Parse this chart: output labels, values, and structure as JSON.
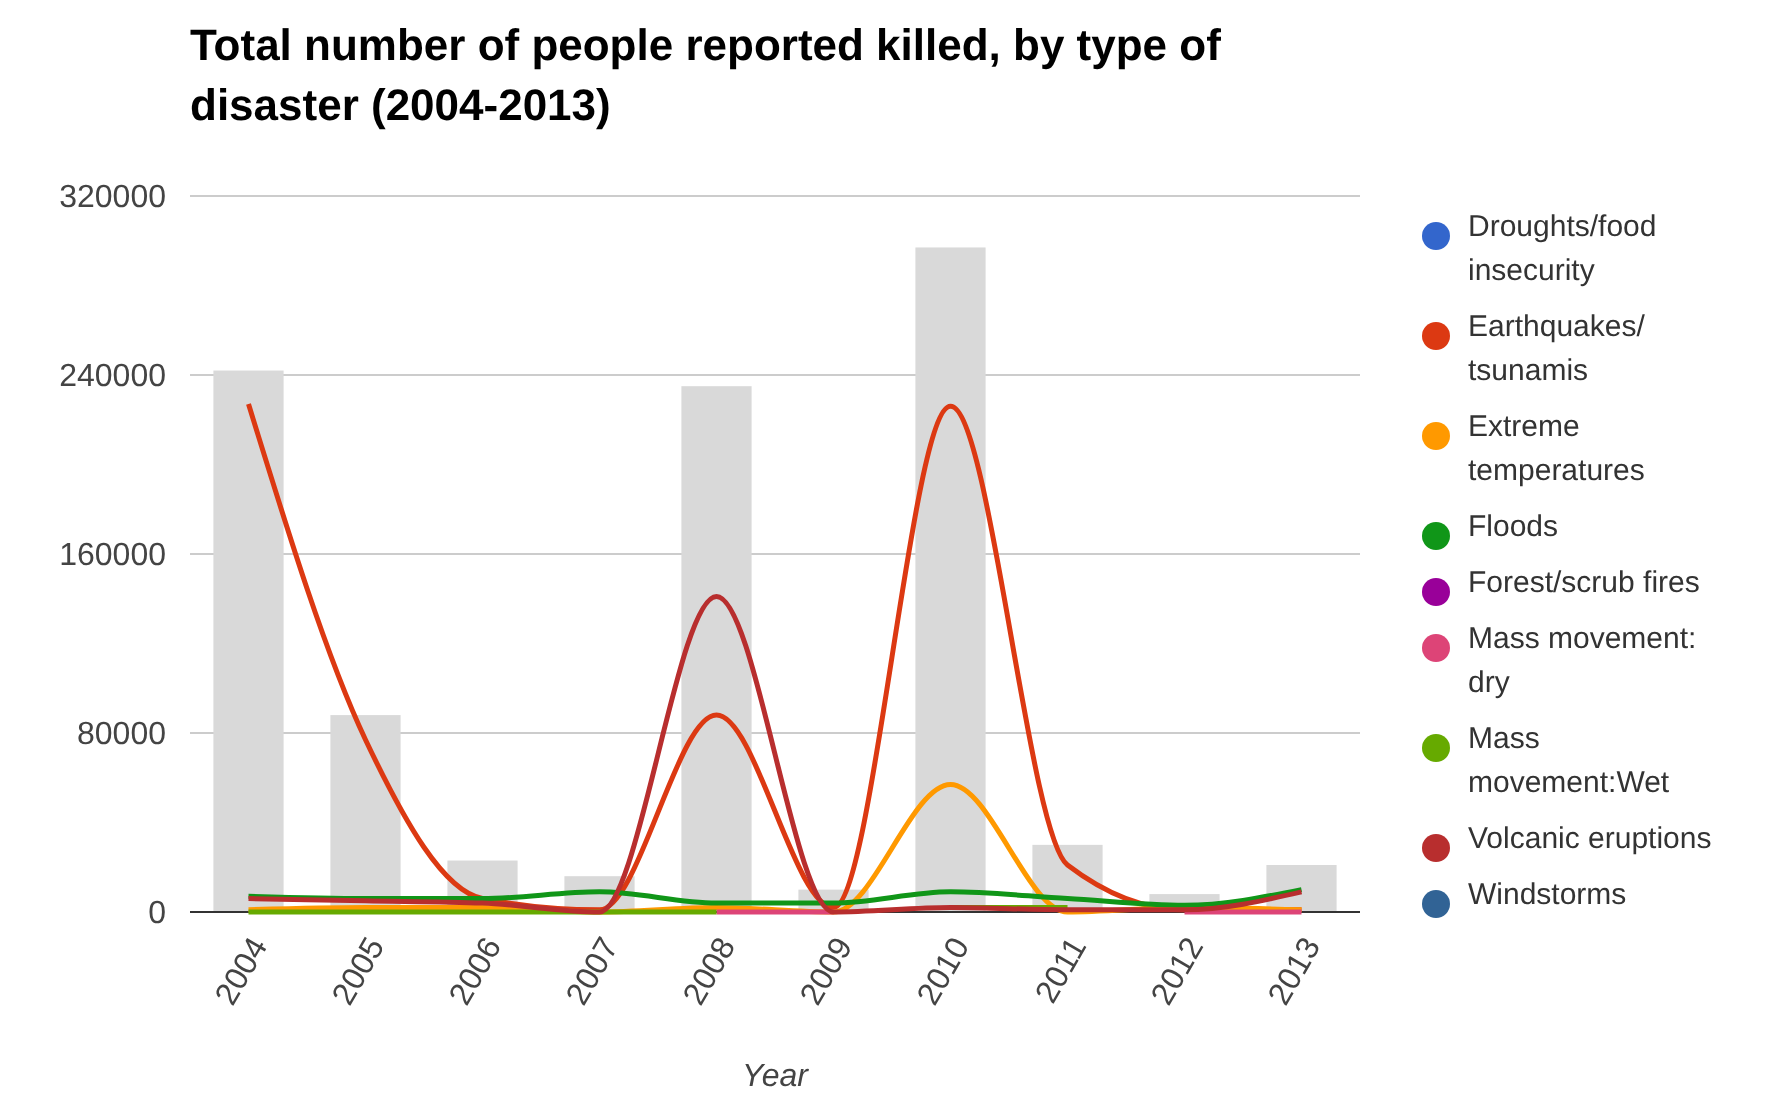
{
  "chart_data": {
    "type": "line",
    "title": "Total number of people reported killed, by type of disaster (2004-2013)",
    "xlabel": "Year",
    "categories": [
      "2004",
      "2005",
      "2006",
      "2007",
      "2008",
      "2009",
      "2010",
      "2011",
      "2012",
      "2013"
    ],
    "ylim": [
      0,
      320000
    ],
    "yticks": [
      0,
      80000,
      160000,
      240000,
      320000
    ],
    "grid": "y",
    "legend": "right",
    "marker": "none",
    "series": [
      {
        "type": "bar",
        "color": "#d9d9d9",
        "values": [
          242000,
          88000,
          23000,
          16000,
          235000,
          10000,
          297000,
          30000,
          8000,
          21000
        ]
      },
      {
        "name": "Droughts/food insecurity",
        "color": "#3366cc",
        "values": [
          null,
          null,
          null,
          null,
          null,
          null,
          null,
          null,
          null,
          null
        ]
      },
      {
        "name": "Earthquakes/tsunamis",
        "color": "#dc3912",
        "values": [
          227000,
          77000,
          6000,
          1000,
          88000,
          2000,
          226000,
          21000,
          1000,
          1000
        ]
      },
      {
        "name": "Extreme temperatures",
        "color": "#ff9900",
        "values": [
          1000,
          2000,
          2000,
          0,
          2000,
          0,
          57000,
          0,
          2000,
          1000
        ]
      },
      {
        "name": "Floods",
        "color": "#109618",
        "values": [
          7000,
          6000,
          6000,
          9000,
          4000,
          4000,
          9000,
          6000,
          3000,
          10000
        ]
      },
      {
        "name": "Forest/scrub fires",
        "color": "#990099",
        "values": [
          null,
          null,
          null,
          null,
          null,
          null,
          null,
          null,
          null,
          null
        ]
      },
      {
        "name": "Mass movement: dry",
        "color": "#dd4477",
        "values": [
          null,
          null,
          null,
          null,
          0,
          0,
          null,
          null,
          0,
          0
        ]
      },
      {
        "name": "Mass movement:Wet",
        "color": "#66aa00",
        "values": [
          0,
          0,
          0,
          0,
          0,
          null,
          2000,
          2000,
          null,
          null
        ]
      },
      {
        "name": "Volcanic eruptions",
        "color": "#b82e2e",
        "values": [
          6000,
          5000,
          4000,
          0,
          141000,
          0,
          2000,
          1000,
          1000,
          9000
        ]
      },
      {
        "name": "Windstorms",
        "color": "#316395",
        "values": [
          null,
          null,
          null,
          null,
          null,
          null,
          null,
          null,
          null,
          null
        ]
      }
    ]
  }
}
